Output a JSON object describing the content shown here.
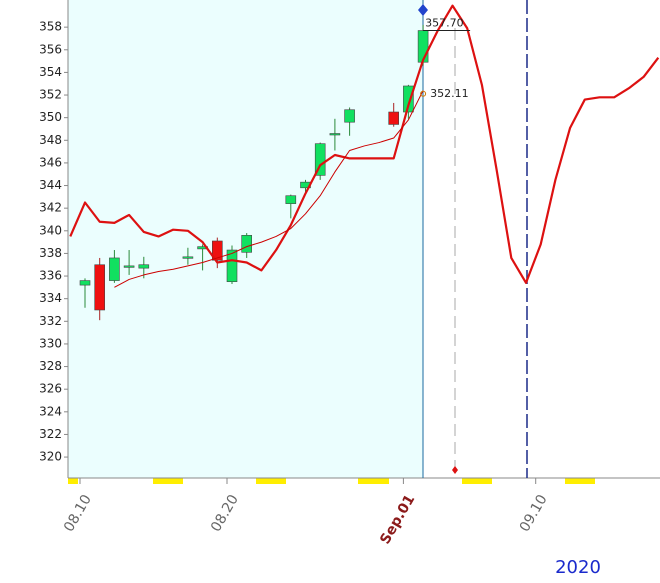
{
  "chart_data": {
    "type": "candlestick",
    "x": [
      "08.09",
      "08.10",
      "08.11",
      "08.12",
      "08.13",
      "08.14",
      "08.15",
      "08.16",
      "08.17",
      "08.18",
      "08.19",
      "08.20",
      "08.21",
      "08.22",
      "08.23",
      "08.24",
      "08.25",
      "08.26",
      "08.27",
      "08.28",
      "08.29",
      "08.30",
      "08.31",
      "09.01",
      "09.02",
      "09.03",
      "09.04",
      "09.05",
      "09.06",
      "09.07",
      "09.08",
      "09.09",
      "09.10",
      "09.11",
      "09.12",
      "09.13",
      "09.14",
      "09.15",
      "09.16",
      "09.17",
      "09.18"
    ],
    "candles": {
      "up_color": "#11e060",
      "down_color": "#ee1111",
      "open": [
        null,
        335.2,
        337.0,
        335.6,
        336.8,
        336.7,
        null,
        null,
        337.6,
        338.4,
        339.1,
        335.5,
        338.1,
        null,
        null,
        342.4,
        343.8,
        344.9,
        348.5,
        349.6,
        null,
        null,
        350.5,
        350.5,
        354.9,
        null,
        null,
        null,
        null,
        null,
        null,
        null,
        null,
        null,
        null,
        null,
        null,
        null,
        null,
        null,
        null
      ],
      "high": [
        null,
        335.8,
        337.6,
        338.3,
        338.3,
        337.7,
        null,
        null,
        338.5,
        338.8,
        339.4,
        338.7,
        339.8,
        null,
        null,
        343.2,
        344.5,
        347.8,
        349.9,
        350.9,
        null,
        null,
        351.3,
        352.9,
        358.2,
        null,
        null,
        null,
        null,
        null,
        null,
        null,
        null,
        null,
        null,
        null,
        null,
        null,
        null,
        null,
        null
      ],
      "low": [
        null,
        333.2,
        332.1,
        335.4,
        336.1,
        335.8,
        null,
        null,
        337.0,
        336.5,
        336.7,
        335.3,
        337.6,
        null,
        null,
        341.1,
        343.3,
        344.5,
        347.1,
        348.4,
        null,
        null,
        349.2,
        349.9,
        354.6,
        null,
        null,
        null,
        null,
        null,
        null,
        null,
        null,
        null,
        null,
        null,
        null,
        null,
        null,
        null,
        null
      ],
      "close": [
        null,
        335.6,
        333.0,
        337.6,
        336.9,
        337.0,
        null,
        null,
        337.7,
        338.6,
        337.4,
        338.3,
        339.6,
        null,
        null,
        343.1,
        344.3,
        347.7,
        348.6,
        350.7,
        null,
        null,
        349.4,
        352.8,
        357.7,
        null,
        null,
        null,
        null,
        null,
        null,
        null,
        null,
        null,
        null,
        null,
        null,
        null,
        null,
        null,
        null
      ]
    },
    "lines": [
      {
        "color": "#dd1111",
        "width": 2.2,
        "values": [
          339.5,
          342.5,
          340.8,
          340.7,
          341.4,
          339.9,
          339.5,
          340.1,
          340.0,
          339.0,
          337.2,
          337.4,
          337.2,
          336.5,
          338.3,
          340.5,
          343.3,
          345.8,
          346.7,
          346.4,
          346.4,
          346.4,
          346.4,
          351.1,
          355.1,
          357.7,
          359.9,
          357.9,
          352.9,
          345.4,
          337.6,
          335.4,
          338.8,
          344.5,
          349.1,
          351.6,
          351.8,
          351.8,
          352.6,
          353.6,
          355.3
        ]
      },
      {
        "color": "#cc0000",
        "width": 1,
        "values": [
          null,
          null,
          null,
          335.0,
          335.7,
          336.1,
          336.4,
          336.6,
          336.9,
          337.2,
          337.6,
          338.0,
          338.6,
          339.0,
          339.5,
          340.2,
          341.5,
          343.1,
          345.2,
          347.1,
          347.5,
          347.8,
          348.2,
          349.8,
          352.4,
          null,
          null,
          null,
          null,
          null,
          null,
          null,
          null,
          null,
          null,
          null,
          null,
          null,
          null,
          null,
          null
        ]
      }
    ],
    "price_labels": [
      {
        "value": 357.7,
        "label": "357.70"
      },
      352.11
    ],
    "ylim": [
      318.15,
      360.4
    ],
    "yticks": [
      320,
      322,
      324,
      326,
      328,
      330,
      332,
      334,
      336,
      338,
      340,
      342,
      344,
      346,
      348,
      350,
      352,
      354,
      356,
      358
    ],
    "xticks": [
      "08.10",
      "08.20",
      {
        "value": "09.01",
        "label": "Sep.01",
        "color": "#8b1a1a"
      },
      "09.10"
    ],
    "xlabel": "2020"
  }
}
